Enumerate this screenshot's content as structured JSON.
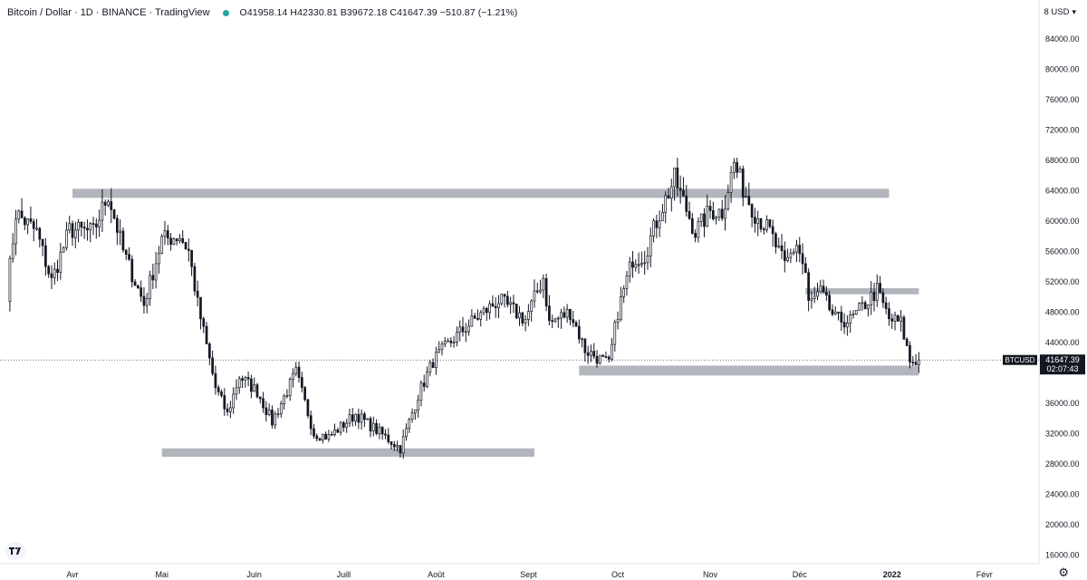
{
  "header": {
    "title": "Bitcoin / Dollar · 1D · BINANCE · TradingView",
    "ohlc": "O41958.14 H42330.81 B39672.18 C41647.39 −510.87 (−1.21%)"
  },
  "currency_selector": {
    "label": "8 USD",
    "caret_icon": "chevron-down-icon"
  },
  "price_label": {
    "symbol": "BTCUSD",
    "price": "41647.39",
    "countdown": "02:07:43"
  },
  "colors": {
    "candle": "#131722",
    "zone": "#b2b5bc",
    "price_tag": "#131722",
    "background": "#ffffff"
  },
  "icons": {
    "logo": "tradingview-logo-icon",
    "settings": "gear-icon"
  },
  "chart_data": {
    "type": "candlestick",
    "y_axis": {
      "ticks": [
        "84000.00",
        "80000.00",
        "76000.00",
        "72000.00",
        "68000.00",
        "64000.00",
        "60000.00",
        "56000.00",
        "52000.00",
        "48000.00",
        "44000.00",
        "36000.00",
        "32000.00",
        "28000.00",
        "24000.00",
        "20000.00",
        "16000.00"
      ],
      "range": [
        15000,
        87000
      ]
    },
    "x_axis": {
      "labels": [
        "Avr",
        "Mai",
        "Juin",
        "Juill",
        "Août",
        "Sept",
        "Oct",
        "Nov",
        "Déc",
        "2022",
        "Févr"
      ],
      "bold": [
        "2022"
      ]
    },
    "last_close": 41647.39,
    "zones": [
      {
        "from": "2021-04-01",
        "to": "2021-12-31",
        "low": 63000,
        "high": 64200
      },
      {
        "from": "2021-05-01",
        "to": "2021-09-03",
        "low": 28900,
        "high": 30000
      },
      {
        "from": "2021-09-18",
        "to": "2022-01-10",
        "low": 39600,
        "high": 40900
      },
      {
        "from": "2021-12-03",
        "to": "2022-01-10",
        "low": 50300,
        "high": 51100
      }
    ],
    "anchors": [
      [
        "2021-03-10",
        50500
      ],
      [
        "2021-03-13",
        61000
      ],
      [
        "2021-03-20",
        58500
      ],
      [
        "2021-03-25",
        52000
      ],
      [
        "2021-03-31",
        58800
      ],
      [
        "2021-04-08",
        58500
      ],
      [
        "2021-04-13",
        63500
      ],
      [
        "2021-04-18",
        56000
      ],
      [
        "2021-04-25",
        49000
      ],
      [
        "2021-05-01",
        57500
      ],
      [
        "2021-05-07",
        58000
      ],
      [
        "2021-05-10",
        56000
      ],
      [
        "2021-05-13",
        49000
      ],
      [
        "2021-05-19",
        38000
      ],
      [
        "2021-05-23",
        34500
      ],
      [
        "2021-05-27",
        39500
      ],
      [
        "2021-06-02",
        37500
      ],
      [
        "2021-06-07",
        33500
      ],
      [
        "2021-06-15",
        40000
      ],
      [
        "2021-06-21",
        32000
      ],
      [
        "2021-06-26",
        31500
      ],
      [
        "2021-07-05",
        34500
      ],
      [
        "2021-07-20",
        30000
      ],
      [
        "2021-07-26",
        37000
      ],
      [
        "2021-07-31",
        41500
      ],
      [
        "2021-08-07",
        44500
      ],
      [
        "2021-08-14",
        47000
      ],
      [
        "2021-08-22",
        49500
      ],
      [
        "2021-08-31",
        47000
      ],
      [
        "2021-09-06",
        52500
      ],
      [
        "2021-09-08",
        46500
      ],
      [
        "2021-09-15",
        48000
      ],
      [
        "2021-09-20",
        43000
      ],
      [
        "2021-09-22",
        42500
      ],
      [
        "2021-09-28",
        41000
      ],
      [
        "2021-10-01",
        48000
      ],
      [
        "2021-10-06",
        55000
      ],
      [
        "2021-10-10",
        55500
      ],
      [
        "2021-10-15",
        61000
      ],
      [
        "2021-10-20",
        65500
      ],
      [
        "2021-10-27",
        58500
      ],
      [
        "2021-11-01",
        61300
      ],
      [
        "2021-11-05",
        61200
      ],
      [
        "2021-11-09",
        67500
      ],
      [
        "2021-11-12",
        64300
      ],
      [
        "2021-11-16",
        61000
      ],
      [
        "2021-11-21",
        58500
      ],
      [
        "2021-11-26",
        54000
      ],
      [
        "2021-11-30",
        57000
      ],
      [
        "2021-12-03",
        53000
      ],
      [
        "2021-12-04",
        49000
      ],
      [
        "2021-12-08",
        50500
      ],
      [
        "2021-12-13",
        47000
      ],
      [
        "2021-12-18",
        46800
      ],
      [
        "2021-12-27",
        50800
      ],
      [
        "2021-12-31",
        47000
      ],
      [
        "2022-01-04",
        46500
      ],
      [
        "2022-01-07",
        41500
      ],
      [
        "2022-01-10",
        41647.39
      ]
    ]
  }
}
